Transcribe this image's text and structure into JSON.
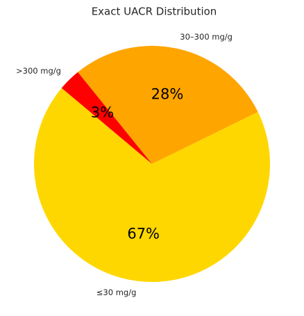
{
  "chart_data": {
    "type": "pie",
    "title": "Exact UACR Distribution",
    "categories": [
      "≤30 mg/g",
      "30–300 mg/g",
      ">300 mg/g"
    ],
    "values": [
      67,
      28,
      3
    ],
    "value_labels": [
      "67%",
      "28%",
      "3%"
    ],
    "colors": [
      "#ffd700",
      "#ffa500",
      "#ff0000"
    ]
  }
}
